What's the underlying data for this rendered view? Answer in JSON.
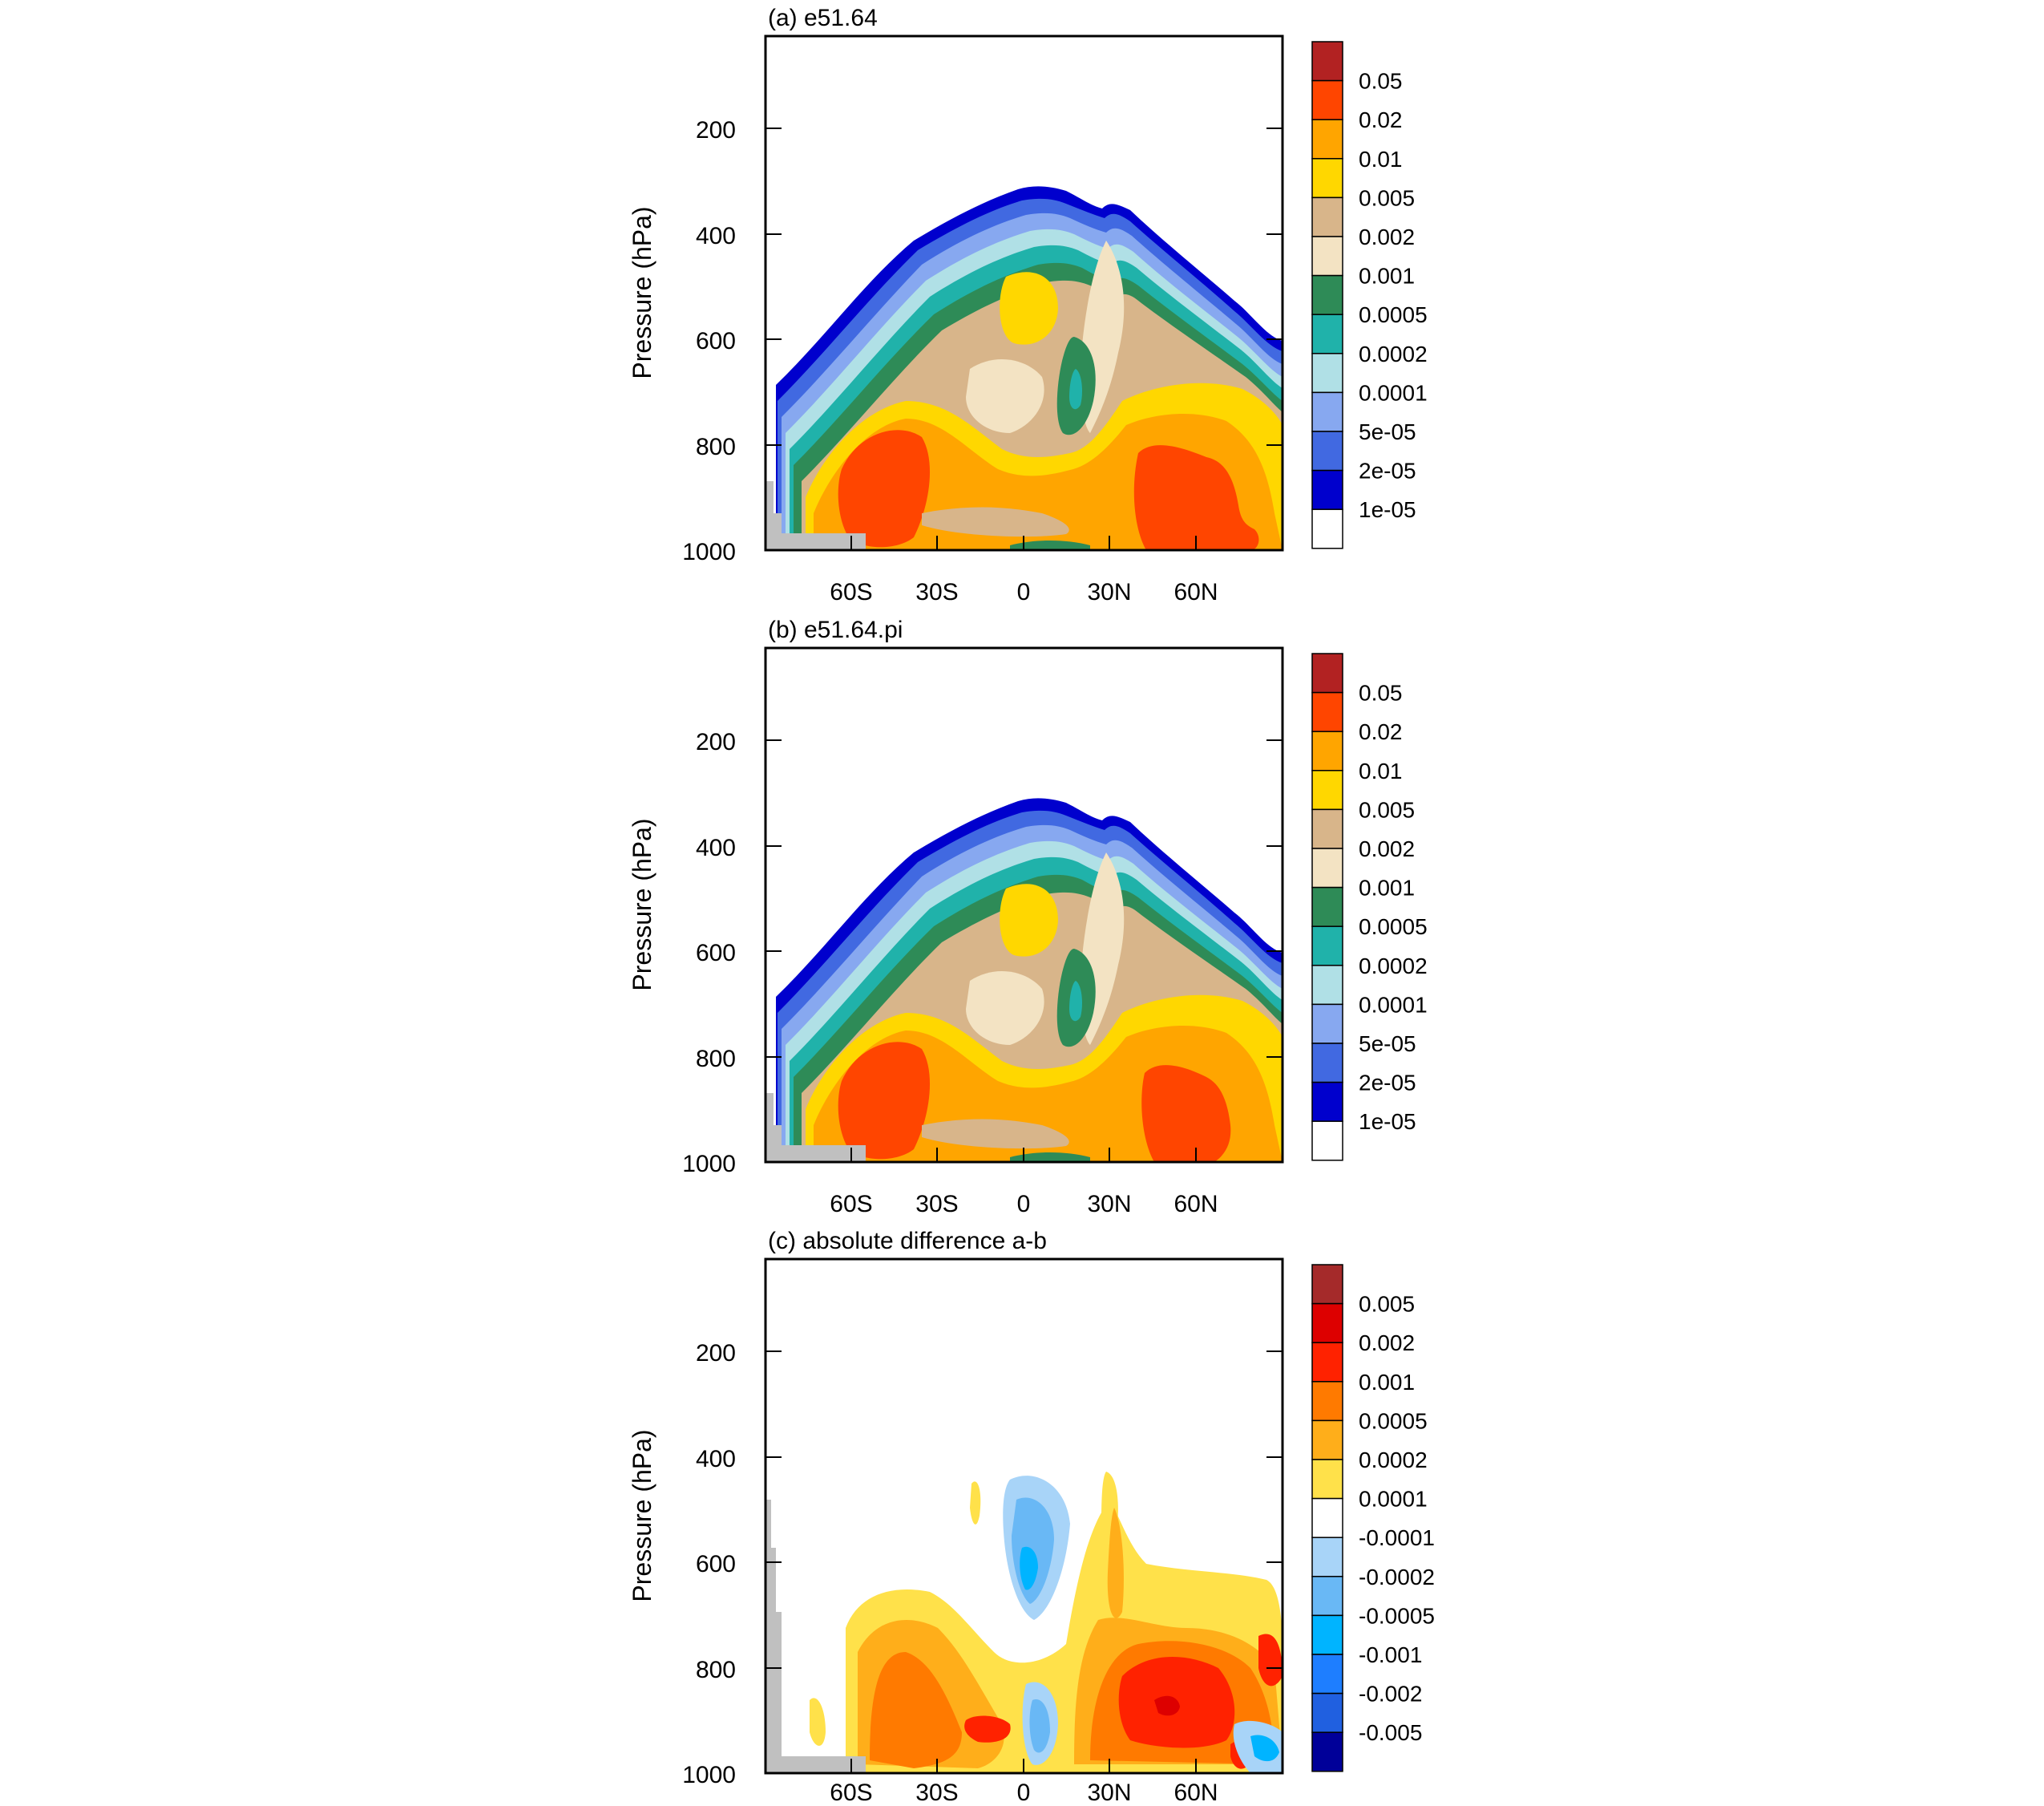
{
  "y_axis_label": "Pressure (hPa)",
  "y_ticks": [
    "200",
    "400",
    "600",
    "800",
    "1000"
  ],
  "x_ticks": [
    "60S",
    "30S",
    "0",
    "30N",
    "60N"
  ],
  "panels": [
    {
      "id": "a",
      "title": "(a) e51.64",
      "colorbar": {
        "labels": [
          "0.05",
          "0.02",
          "0.01",
          "0.005",
          "0.002",
          "0.001",
          "0.0005",
          "0.0002",
          "0.0001",
          "5e-05",
          "2e-05",
          "1e-05"
        ],
        "colors": [
          "#b22222",
          "#ff4500",
          "#ffa500",
          "#ffd700",
          "#d8b58a",
          "#f3e3c3",
          "#2e8b57",
          "#20b2aa",
          "#b0e0e6",
          "#87a8f0",
          "#4169e1",
          "#0000cd",
          "#ffffff"
        ]
      }
    },
    {
      "id": "b",
      "title": "(b) e51.64.pi",
      "colorbar": {
        "labels": [
          "0.05",
          "0.02",
          "0.01",
          "0.005",
          "0.002",
          "0.001",
          "0.0005",
          "0.0002",
          "0.0001",
          "5e-05",
          "2e-05",
          "1e-05"
        ],
        "colors": [
          "#b22222",
          "#ff4500",
          "#ffa500",
          "#ffd700",
          "#d8b58a",
          "#f3e3c3",
          "#2e8b57",
          "#20b2aa",
          "#b0e0e6",
          "#87a8f0",
          "#4169e1",
          "#0000cd",
          "#ffffff"
        ]
      }
    },
    {
      "id": "c",
      "title": "(c) absolute difference a-b",
      "colorbar": {
        "labels": [
          "0.005",
          "0.002",
          "0.001",
          "0.0005",
          "0.0002",
          "0.0001",
          "-0.0001",
          "-0.0002",
          "-0.0005",
          "-0.001",
          "-0.002",
          "-0.005"
        ],
        "colors": [
          "#a52a2a",
          "#dd0000",
          "#ff2200",
          "#ff7a00",
          "#ffae1a",
          "#ffe14a",
          "#ffffff",
          "#a8d4f8",
          "#69b8f5",
          "#00b4ff",
          "#1e7eff",
          "#2060e0",
          "#000099"
        ]
      }
    }
  ],
  "chart_data": [
    {
      "type": "heatmap",
      "title": "(a) e51.64",
      "ylabel": "Pressure (hPa)",
      "ylim": [
        1000,
        0
      ],
      "xlim": [
        -90,
        90
      ],
      "x_ticks": [
        "60S",
        "30S",
        "0",
        "30N",
        "60N"
      ],
      "y_ticks": [
        200,
        400,
        600,
        800,
        1000
      ],
      "levels": [
        1e-05,
        2e-05,
        5e-05,
        0.0001,
        0.0002,
        0.0005,
        0.001,
        0.002,
        0.005,
        0.01,
        0.02,
        0.05
      ]
    },
    {
      "type": "heatmap",
      "title": "(b) e51.64.pi",
      "ylabel": "Pressure (hPa)",
      "ylim": [
        1000,
        0
      ],
      "xlim": [
        -90,
        90
      ],
      "x_ticks": [
        "60S",
        "30S",
        "0",
        "30N",
        "60N"
      ],
      "y_ticks": [
        200,
        400,
        600,
        800,
        1000
      ],
      "levels": [
        1e-05,
        2e-05,
        5e-05,
        0.0001,
        0.0002,
        0.0005,
        0.001,
        0.002,
        0.005,
        0.01,
        0.02,
        0.05
      ]
    },
    {
      "type": "heatmap",
      "title": "(c) absolute difference a-b",
      "ylabel": "Pressure (hPa)",
      "ylim": [
        1000,
        0
      ],
      "xlim": [
        -90,
        90
      ],
      "x_ticks": [
        "60S",
        "30S",
        "0",
        "30N",
        "60N"
      ],
      "y_ticks": [
        200,
        400,
        600,
        800,
        1000
      ],
      "levels": [
        -0.005,
        -0.002,
        -0.001,
        -0.0005,
        -0.0002,
        -0.0001,
        0.0001,
        0.0002,
        0.0005,
        0.001,
        0.002,
        0.005
      ]
    }
  ]
}
